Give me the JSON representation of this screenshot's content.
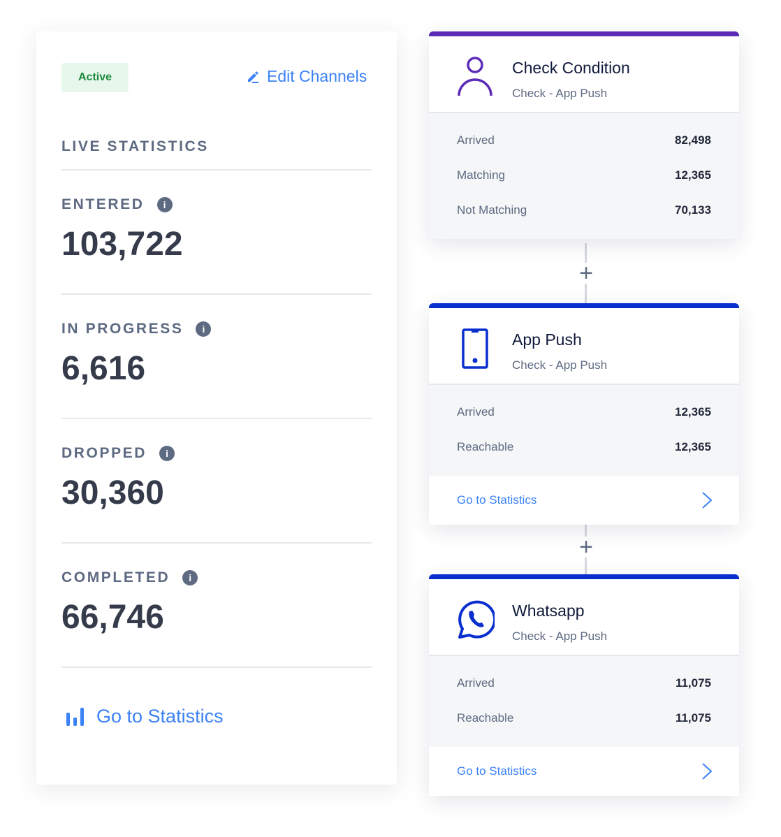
{
  "left": {
    "status": "Active",
    "edit_label": "Edit Channels",
    "section_title": "LIVE STATISTICS",
    "stats": [
      {
        "label": "ENTERED",
        "value": "103,722"
      },
      {
        "label": "IN PROGRESS",
        "value": "6,616"
      },
      {
        "label": "DROPPED",
        "value": "30,360"
      },
      {
        "label": "COMPLETED",
        "value": "66,746"
      }
    ],
    "go_label": "Go to Statistics"
  },
  "cards": [
    {
      "title": "Check Condition",
      "subtitle": "Check - App Push",
      "icon": "user-icon",
      "accent": "#5b2bb8",
      "rows": [
        {
          "k": "Arrived",
          "v": "82,498"
        },
        {
          "k": "Matching",
          "v": "12,365"
        },
        {
          "k": "Not Matching",
          "v": "70,133"
        }
      ]
    },
    {
      "title": "App Push",
      "subtitle": "Check - App Push",
      "icon": "mobile-phone-icon",
      "accent": "#0a2fcf",
      "rows": [
        {
          "k": "Arrived",
          "v": "12,365"
        },
        {
          "k": "Reachable",
          "v": "12,365"
        }
      ],
      "go_label": "Go to Statistics"
    },
    {
      "title": "Whatsapp",
      "subtitle": "Check - App Push",
      "icon": "whatsapp-icon",
      "accent": "#0a2fcf",
      "rows": [
        {
          "k": "Arrived",
          "v": "11,075"
        },
        {
          "k": "Reachable",
          "v": "11,075"
        }
      ],
      "go_label": "Go to Statistics"
    }
  ],
  "connector_label": "+"
}
